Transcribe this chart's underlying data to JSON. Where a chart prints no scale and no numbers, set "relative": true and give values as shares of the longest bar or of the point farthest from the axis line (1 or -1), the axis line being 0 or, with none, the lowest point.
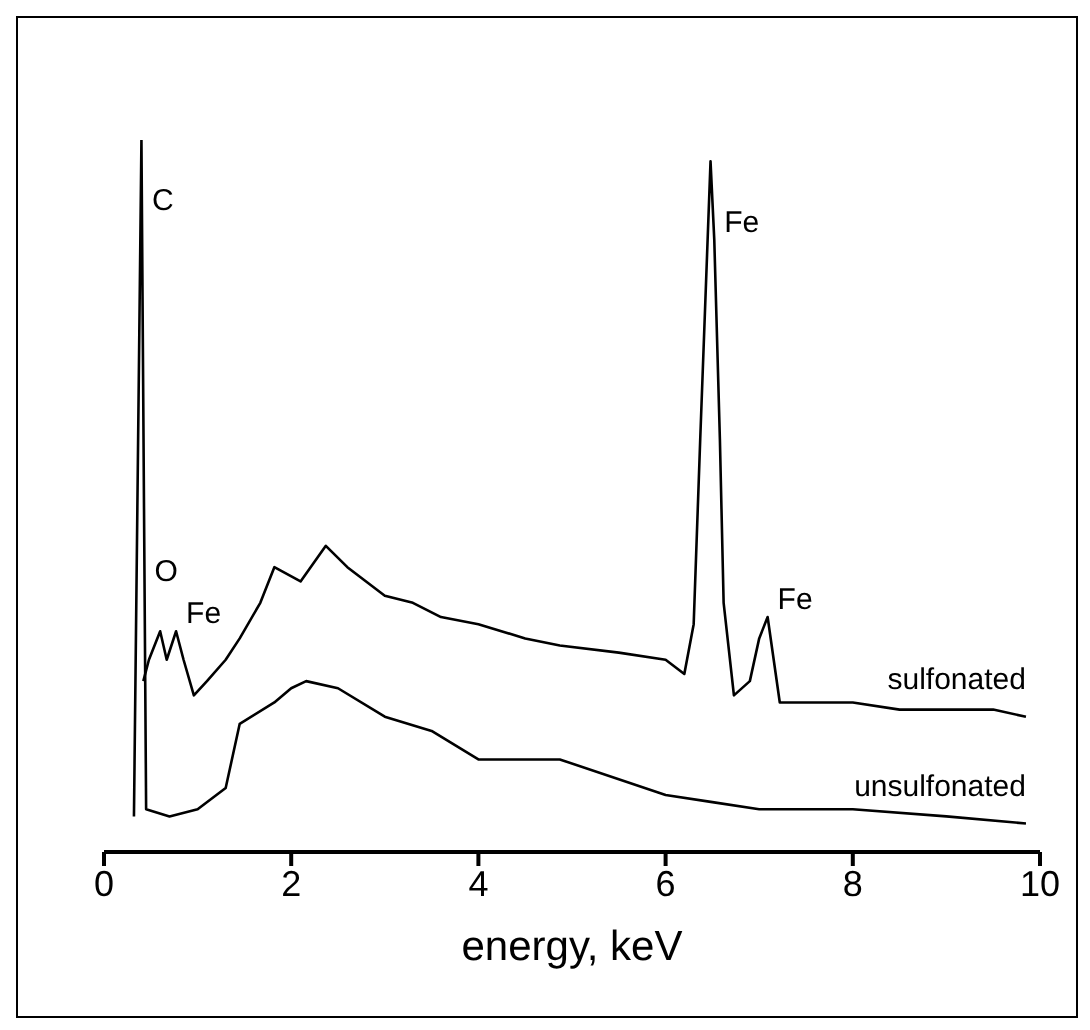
{
  "chart_data": {
    "type": "line",
    "xlabel": "energy, keV",
    "relative": true,
    "tick_labels": "x",
    "xlim": [
      0,
      10
    ],
    "xticks": [
      0,
      2,
      4,
      6,
      8,
      10
    ],
    "line_style": "solid",
    "marker": "none",
    "series": [
      {
        "name": "sulfonated",
        "color": "#000000",
        "x": [
          0.42,
          0.48,
          0.6,
          0.67,
          0.77,
          0.85,
          0.96,
          1.1,
          1.3,
          1.45,
          1.67,
          1.82,
          2.1,
          2.37,
          2.6,
          3.0,
          3.3,
          3.6,
          4.0,
          4.5,
          4.87,
          5.5,
          6.0,
          6.2,
          6.3,
          6.37,
          6.48,
          6.52,
          6.58,
          6.62,
          6.73,
          6.9,
          7.0,
          7.09,
          7.22,
          7.5,
          8.0,
          8.5,
          9.0,
          9.5,
          9.85
        ],
        "values": [
          0.24,
          0.27,
          0.31,
          0.27,
          0.31,
          0.27,
          0.22,
          0.24,
          0.27,
          0.3,
          0.35,
          0.4,
          0.38,
          0.43,
          0.4,
          0.36,
          0.35,
          0.33,
          0.32,
          0.3,
          0.29,
          0.28,
          0.27,
          0.25,
          0.32,
          0.58,
          0.97,
          0.86,
          0.58,
          0.35,
          0.22,
          0.24,
          0.3,
          0.33,
          0.21,
          0.21,
          0.21,
          0.2,
          0.2,
          0.2,
          0.19
        ]
      },
      {
        "name": "unsulfonated",
        "color": "#000000",
        "x": [
          0.32,
          0.4,
          0.45,
          0.7,
          1.0,
          1.3,
          1.45,
          1.82,
          2.0,
          2.16,
          2.5,
          3.0,
          3.5,
          4.0,
          4.5,
          4.87,
          6.0,
          6.5,
          7.0,
          8.0,
          9.0,
          9.85
        ],
        "values": [
          0.05,
          1,
          0.06,
          0.05,
          0.06,
          0.09,
          0.18,
          0.21,
          0.23,
          0.24,
          0.23,
          0.19,
          0.17,
          0.13,
          0.13,
          0.13,
          0.08,
          0.07,
          0.06,
          0.06,
          0.05,
          0.04
        ]
      }
    ],
    "annotations": [
      {
        "text": "C",
        "x": 0.406,
        "y": 0.89
      },
      {
        "text": "O",
        "x": 0.434,
        "y": 0.37
      },
      {
        "text": "Fe",
        "x": 0.77,
        "y": 0.31
      },
      {
        "text": "Fe",
        "x": 6.52,
        "y": 0.86
      },
      {
        "text": "Fe",
        "x": 7.09,
        "y": 0.33
      }
    ]
  }
}
